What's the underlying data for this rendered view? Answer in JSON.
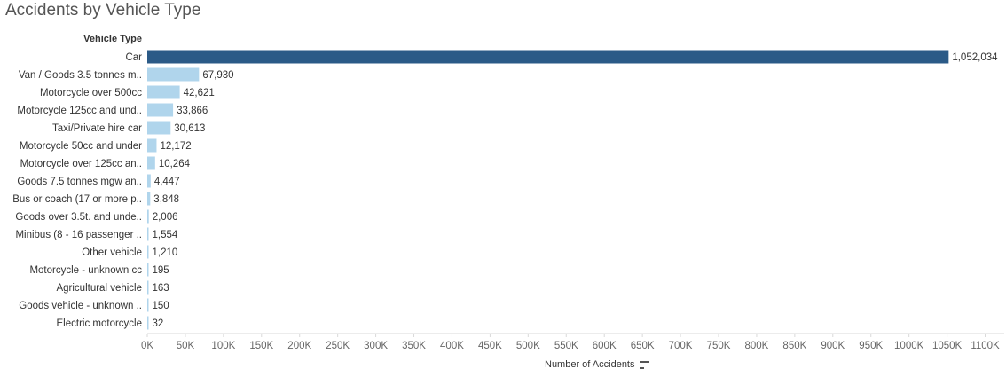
{
  "chart_data": {
    "type": "bar",
    "orientation": "horizontal",
    "title": "Accidents by Vehicle Type",
    "ylabel": "Vehicle Type",
    "xlabel": "Number of Accidents",
    "categories": [
      "Car",
      "Van / Goods 3.5 tonnes m..",
      "Motorcycle over 500cc",
      "Motorcycle 125cc and und..",
      "Taxi/Private hire car",
      "Motorcycle 50cc and under",
      "Motorcycle over 125cc an..",
      "Goods 7.5 tonnes mgw an..",
      "Bus or coach (17 or more p..",
      "Goods over 3.5t. and unde..",
      "Minibus (8 - 16 passenger ..",
      "Other vehicle",
      "Motorcycle - unknown cc",
      "Agricultural vehicle",
      "Goods vehicle - unknown ..",
      "Electric motorcycle"
    ],
    "values": [
      1052034,
      67930,
      42621,
      33866,
      30613,
      12172,
      10264,
      4447,
      3848,
      2006,
      1554,
      1210,
      195,
      163,
      150,
      32
    ],
    "value_labels": [
      "1,052,034",
      "67,930",
      "42,621",
      "33,866",
      "30,613",
      "12,172",
      "10,264",
      "4,447",
      "3,848",
      "2,006",
      "1,554",
      "1,210",
      "195",
      "163",
      "150",
      "32"
    ],
    "xlim": [
      0,
      1125000
    ],
    "xticks": [
      0,
      50000,
      100000,
      150000,
      200000,
      250000,
      300000,
      350000,
      400000,
      450000,
      500000,
      550000,
      600000,
      650000,
      700000,
      750000,
      800000,
      850000,
      900000,
      950000,
      1000000,
      1050000,
      1100000
    ],
    "xtick_labels": [
      "0K",
      "50K",
      "100K",
      "150K",
      "200K",
      "250K",
      "300K",
      "350K",
      "400K",
      "450K",
      "500K",
      "550K",
      "600K",
      "650K",
      "700K",
      "750K",
      "800K",
      "850K",
      "900K",
      "950K",
      "1000K",
      "1050K",
      "1100K"
    ],
    "colors": {
      "highlight": "#2b5a87",
      "default": "#b0d5ec",
      "axis": "#d9d9d9",
      "text": "#333333",
      "title": "#555555"
    },
    "grid": false,
    "sort_icon": "sort-descending-icon"
  }
}
